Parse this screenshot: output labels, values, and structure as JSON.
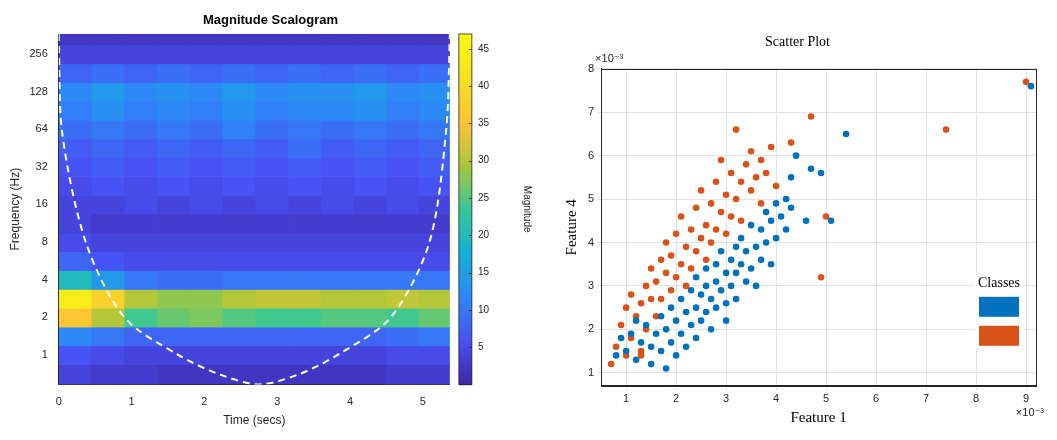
{
  "chart_data": [
    {
      "type": "heatmap",
      "title": "Magnitude Scalogram",
      "x_label": "Time (secs)",
      "y_label": "Frequency (Hz)",
      "log": "y",
      "grid": false,
      "xlim": [
        0,
        5.37
      ],
      "xticks": [
        0,
        1,
        2,
        3,
        4,
        5
      ],
      "ylim": [
        0.58,
        370
      ],
      "yticks": [
        1,
        2,
        4,
        8,
        16,
        32,
        64,
        128,
        256
      ],
      "x_edges": [
        0,
        0.45,
        0.9,
        1.35,
        1.8,
        2.25,
        2.7,
        3.15,
        3.6,
        4.05,
        4.5,
        4.95,
        5.37
      ],
      "y_edges": [
        0.58,
        0.84,
        1.19,
        1.68,
        2.38,
        3.36,
        4.76,
        6.73,
        9.51,
        13.5,
        19,
        26.9,
        38.1,
        53.8,
        76.1,
        108,
        152,
        215,
        304,
        370
      ],
      "cells": [
        [
          4,
          3,
          3,
          2,
          2,
          2,
          2,
          2,
          2,
          2,
          3,
          3
        ],
        [
          6,
          5,
          4,
          4,
          4,
          4,
          4,
          4,
          4,
          4,
          5,
          5
        ],
        [
          12,
          10,
          8,
          8,
          8,
          8,
          8,
          8,
          8,
          8,
          9,
          10
        ],
        [
          36,
          30,
          24,
          26,
          27,
          25,
          24,
          24,
          25,
          25,
          24,
          26
        ],
        [
          44,
          38,
          30,
          28,
          28,
          30,
          31,
          31,
          30,
          30,
          31,
          30
        ],
        [
          20,
          14,
          10,
          9,
          9,
          10,
          10,
          10,
          10,
          10,
          10,
          10
        ],
        [
          8,
          6,
          5,
          5,
          5,
          5,
          5,
          5,
          5,
          5,
          5,
          5
        ],
        [
          5,
          4,
          4,
          4,
          4,
          4,
          4,
          4,
          4,
          4,
          4,
          4
        ],
        [
          4,
          3,
          3,
          3,
          3,
          3,
          3,
          3,
          3,
          3,
          3,
          3
        ],
        [
          4,
          4,
          5,
          4,
          5,
          4,
          5,
          4,
          5,
          4,
          5,
          4
        ],
        [
          5,
          6,
          5,
          6,
          5,
          6,
          5,
          6,
          5,
          6,
          5,
          6
        ],
        [
          6,
          7,
          6,
          7,
          6,
          7,
          6,
          7,
          6,
          7,
          6,
          7
        ],
        [
          7,
          8,
          7,
          8,
          7,
          8,
          7,
          9,
          7,
          8,
          7,
          8
        ],
        [
          9,
          10,
          9,
          10,
          9,
          11,
          9,
          10,
          9,
          10,
          9,
          10
        ],
        [
          11,
          13,
          11,
          12,
          11,
          13,
          11,
          12,
          12,
          13,
          11,
          12
        ],
        [
          12,
          14,
          12,
          13,
          12,
          14,
          12,
          13,
          13,
          14,
          12,
          13
        ],
        [
          8,
          9,
          8,
          9,
          8,
          9,
          8,
          9,
          8,
          9,
          8,
          9
        ],
        [
          4,
          4,
          4,
          4,
          4,
          4,
          4,
          4,
          4,
          4,
          4,
          4
        ],
        [
          2,
          2,
          2,
          2,
          2,
          2,
          2,
          2,
          2,
          2,
          2,
          2
        ]
      ],
      "colorbar": {
        "label": "Magnitude",
        "range": [
          0,
          47
        ],
        "ticks": [
          5,
          10,
          15,
          20,
          25,
          30,
          35,
          40,
          45
        ]
      },
      "series": [
        {
          "type": "line",
          "color": "#ffffff",
          "line_style": "dashed",
          "x": [
            0,
            0.04,
            0.37,
            0.9,
            1.64,
            2.2,
            2.75,
            3.3,
            3.83,
            4.56,
            5.09,
            5.32,
            5.37
          ],
          "values": [
            370,
            64,
            8,
            2,
            1,
            0.7,
            0.58,
            0.7,
            1,
            2,
            8,
            64,
            370
          ]
        }
      ]
    },
    {
      "type": "scatter",
      "title": "Scatter Plot",
      "x_label": "Feature 1",
      "y_label": "Feature 4",
      "x_multiplier_text": "×10⁻³",
      "y_multiplier_text": "×10⁻³",
      "xlim": [
        0.5,
        9.2
      ],
      "xticks": [
        1,
        2,
        3,
        4,
        5,
        6,
        7,
        8,
        9
      ],
      "ylim": [
        0.7,
        8
      ],
      "yticks": [
        1,
        2,
        3,
        4,
        5,
        6,
        7,
        8
      ],
      "grid": true,
      "legend": "lower right",
      "legend_title": "Classes",
      "series": [
        {
          "color": "#0072bd",
          "marker": "circle",
          "x": [
            0.9,
            1.0,
            1.1,
            1.2,
            1.3,
            1.4,
            1.5,
            1.5,
            1.6,
            1.7,
            1.7,
            1.8,
            1.8,
            1.9,
            1.9,
            2.0,
            2.0,
            2.1,
            2.1,
            2.2,
            2.2,
            2.3,
            2.3,
            2.4,
            2.4,
            2.4,
            2.5,
            2.5,
            2.6,
            2.6,
            2.6,
            2.7,
            2.7,
            2.8,
            2.8,
            2.8,
            2.9,
            2.9,
            3.0,
            3.0,
            3.0,
            3.1,
            3.1,
            3.2,
            3.2,
            3.2,
            3.3,
            3.3,
            3.4,
            3.4,
            3.5,
            3.5,
            3.6,
            3.6,
            3.7,
            3.7,
            3.8,
            3.8,
            3.9,
            3.9,
            4.0,
            4.0,
            4.1,
            4.2,
            4.2,
            4.3,
            4.3,
            4.4,
            4.6,
            4.7,
            4.9,
            5.1,
            5.4,
            9.1,
            1.2,
            0.8
          ],
          "values": [
            1.8,
            1.5,
            1.9,
            1.3,
            1.7,
            2.1,
            1.6,
            1.2,
            1.9,
            2.3,
            1.5,
            1.1,
            2.0,
            2.5,
            1.7,
            2.2,
            1.4,
            2.7,
            1.9,
            2.4,
            1.6,
            2.9,
            2.1,
            3.2,
            2.5,
            1.8,
            2.8,
            2.2,
            3.4,
            3.0,
            2.4,
            2.7,
            2.0,
            3.5,
            3.1,
            2.5,
            3.8,
            2.9,
            3.3,
            2.6,
            2.2,
            3.6,
            3.0,
            3.9,
            3.3,
            2.7,
            3.5,
            4.1,
            3.1,
            3.8,
            4.4,
            3.4,
            3.9,
            3.0,
            4.3,
            3.6,
            4.7,
            4.0,
            3.5,
            4.5,
            4.9,
            4.1,
            4.6,
            5.0,
            4.3,
            5.5,
            4.8,
            6.0,
            4.5,
            5.7,
            5.6,
            4.5,
            6.5,
            7.6,
            2.2,
            1.4
          ]
        },
        {
          "color": "#d95319",
          "marker": "circle",
          "x": [
            0.7,
            0.8,
            0.9,
            1.0,
            1.0,
            1.1,
            1.1,
            1.2,
            1.3,
            1.3,
            1.4,
            1.4,
            1.5,
            1.5,
            1.6,
            1.6,
            1.7,
            1.7,
            1.8,
            1.8,
            1.9,
            1.9,
            2.0,
            2.0,
            2.1,
            2.1,
            2.2,
            2.2,
            2.3,
            2.3,
            2.4,
            2.4,
            2.5,
            2.5,
            2.6,
            2.6,
            2.7,
            2.7,
            2.8,
            2.8,
            2.9,
            2.9,
            3.0,
            3.0,
            3.1,
            3.1,
            3.2,
            3.2,
            3.3,
            3.3,
            3.4,
            3.5,
            3.5,
            3.6,
            3.7,
            3.7,
            3.8,
            3.9,
            4.0,
            4.3,
            4.7,
            4.9,
            5.0,
            7.4,
            9.0,
            1.3
          ],
          "values": [
            1.2,
            1.6,
            2.1,
            2.5,
            1.4,
            1.8,
            2.8,
            2.3,
            2.6,
            1.5,
            3.0,
            2.0,
            2.7,
            3.4,
            2.3,
            3.1,
            3.6,
            2.7,
            3.3,
            4.0,
            2.9,
            3.7,
            3.2,
            4.2,
            3.5,
            4.6,
            3.9,
            3.0,
            4.3,
            3.4,
            4.8,
            3.8,
            4.1,
            5.2,
            4.4,
            3.6,
            4.9,
            4.0,
            5.4,
            4.3,
            5.9,
            4.7,
            5.1,
            4.2,
            5.6,
            4.6,
            6.6,
            5.0,
            5.4,
            4.5,
            5.8,
            5.2,
            6.1,
            5.5,
            5.9,
            4.9,
            5.6,
            6.2,
            5.3,
            6.3,
            6.9,
            3.2,
            4.6,
            6.6,
            7.7,
            1.4
          ]
        }
      ]
    }
  ]
}
